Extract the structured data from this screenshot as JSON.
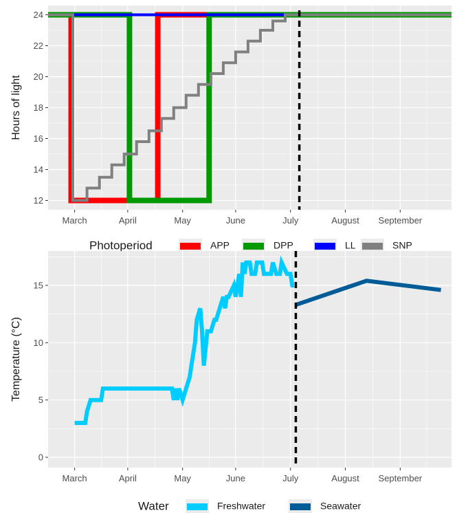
{
  "chart_data": [
    {
      "type": "line",
      "ylabel": "Hours of light",
      "xlabel": "",
      "x_tick_labels": [
        "March",
        "April",
        "May",
        "June",
        "July",
        "August",
        "September"
      ],
      "x_tick_days": [
        61,
        91,
        122,
        152,
        183,
        214,
        245
      ],
      "xlim_days": [
        46,
        274
      ],
      "ylim": [
        11.4,
        24.6
      ],
      "y_ticks": [
        12,
        14,
        16,
        18,
        20,
        22,
        24
      ],
      "vline_day": 188,
      "grid": true,
      "legend": {
        "title": "Photoperiod",
        "position": "bottom",
        "entries": [
          {
            "label": "APP",
            "color": "#ff0000"
          },
          {
            "label": "DPP",
            "color": "#009900"
          },
          {
            "label": "LL",
            "color": "#0000ff"
          },
          {
            "label": "SNP",
            "color": "#808080"
          }
        ]
      },
      "series": [
        {
          "name": "APP",
          "color": "#ff0000",
          "x": [
            46,
            59,
            59,
            108,
            108,
            274
          ],
          "y": [
            24,
            24,
            12,
            12,
            24,
            24
          ]
        },
        {
          "name": "DPP",
          "color": "#009900",
          "x": [
            46,
            92,
            92,
            137,
            137,
            274
          ],
          "y": [
            24,
            24,
            12,
            12,
            24,
            24
          ]
        },
        {
          "name": "LL",
          "color": "#0000ff",
          "x": [
            46,
            274
          ],
          "y": [
            24,
            24
          ]
        },
        {
          "name": "SNP",
          "color": "#808080",
          "x": [
            46,
            60,
            60,
            68,
            68,
            75,
            75,
            82,
            82,
            89,
            89,
            96,
            96,
            103,
            103,
            110,
            110,
            117,
            117,
            124,
            124,
            131,
            131,
            138,
            138,
            145,
            145,
            152,
            152,
            159,
            159,
            166,
            166,
            173,
            173,
            180,
            180,
            186,
            186,
            274
          ],
          "y": [
            24,
            24,
            12,
            12,
            12.8,
            12.8,
            13.5,
            13.5,
            14.3,
            14.3,
            15.0,
            15.0,
            15.8,
            15.8,
            16.5,
            16.5,
            17.3,
            17.3,
            18.0,
            18.0,
            18.8,
            18.8,
            19.5,
            19.5,
            20.2,
            20.2,
            20.9,
            20.9,
            21.6,
            21.6,
            22.3,
            22.3,
            23.0,
            23.0,
            23.6,
            23.6,
            24,
            24,
            24,
            24
          ]
        }
      ]
    },
    {
      "type": "line",
      "ylabel": "Temperature (°C)",
      "xlabel": "",
      "x_tick_labels": [
        "March",
        "April",
        "May",
        "June",
        "July",
        "August",
        "September"
      ],
      "x_tick_days": [
        61,
        91,
        122,
        152,
        183,
        214,
        245
      ],
      "xlim_days": [
        46,
        274
      ],
      "ylim": [
        -0.9,
        18
      ],
      "y_ticks": [
        0,
        5,
        10,
        15
      ],
      "vline_day": 186,
      "grid": true,
      "legend": {
        "title": "Water",
        "position": "bottom",
        "entries": [
          {
            "label": "Freshwater",
            "color": "#00ccff"
          },
          {
            "label": "Seawater",
            "color": "#005b96"
          }
        ]
      },
      "series": [
        {
          "name": "Freshwater",
          "color": "#00ccff",
          "x": [
            61,
            67,
            68,
            70,
            76,
            77,
            116,
            117,
            118,
            119,
            120,
            122,
            124,
            126,
            127,
            129,
            130,
            132,
            133,
            134,
            136,
            138,
            140,
            141,
            143,
            145,
            146,
            147,
            148,
            151,
            152,
            154,
            155,
            156,
            157,
            158,
            160,
            161,
            163,
            164,
            167,
            168,
            172,
            173,
            175,
            177,
            178,
            181,
            183,
            184,
            185
          ],
          "y": [
            3,
            3,
            4,
            5,
            5,
            6,
            6,
            5,
            6,
            5,
            6,
            5,
            6,
            7,
            8,
            10,
            12,
            13,
            11,
            8,
            11,
            11,
            12,
            12,
            13,
            14,
            13,
            14,
            14,
            15,
            14,
            16,
            14,
            17,
            16,
            17,
            17,
            16,
            16,
            17,
            17,
            16,
            16,
            17,
            16,
            16,
            17,
            16,
            16,
            15,
            15
          ]
        },
        {
          "name": "Seawater",
          "color": "#005b96",
          "x": [
            186,
            226,
            268
          ],
          "y": [
            13.3,
            15.4,
            14.6
          ]
        }
      ]
    }
  ]
}
